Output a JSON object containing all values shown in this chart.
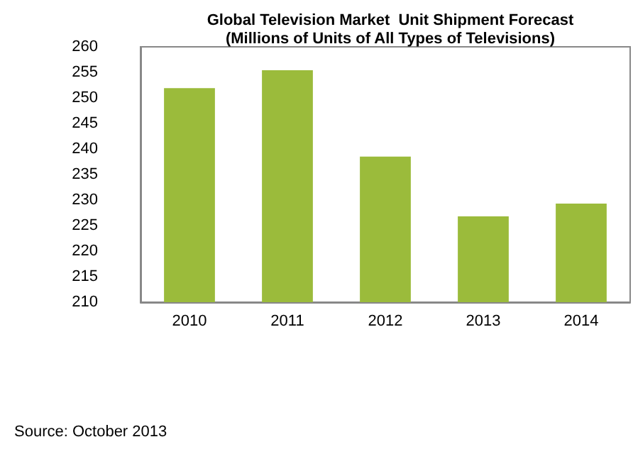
{
  "chart_data": {
    "type": "bar",
    "title": "Global Television Market  Unit Shipment Forecast\n(Millions of Units of All Types of Televisions)",
    "categories": [
      "2010",
      "2011",
      "2012",
      "2013",
      "2014"
    ],
    "values": [
      251.9,
      255.4,
      238.5,
      226.8,
      229.3
    ],
    "color": "#9bbb3b",
    "ylim": [
      210,
      260
    ],
    "yticks": [
      210,
      215,
      220,
      225,
      230,
      235,
      240,
      245,
      250,
      255,
      260
    ],
    "grid": false,
    "annotations": [
      "Source: October 2013"
    ]
  }
}
